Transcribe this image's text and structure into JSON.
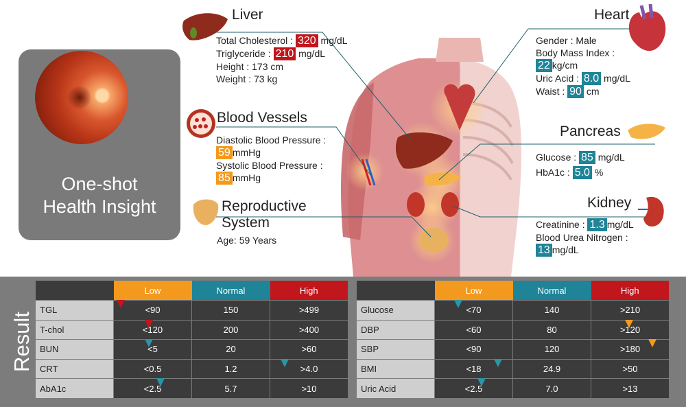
{
  "insight": {
    "title_line1": "One-shot",
    "title_line2": "Health Insight"
  },
  "liver": {
    "title": "Liver",
    "cholesterol_label": "Total Cholesterol :",
    "cholesterol_value": "320",
    "cholesterol_unit": "mg/dL",
    "triglyceride_label": "Triglyceride :",
    "triglyceride_value": "210",
    "triglyceride_unit": "mg/dL",
    "height": "Height : 173 cm",
    "weight": "Weight : 73 kg"
  },
  "blood_vessels": {
    "title": "Blood Vessels",
    "diastolic_label": "Diastolic Blood Pressure :",
    "diastolic_value": "59",
    "diastolic_unit": "mmHg",
    "systolic_label": "Systolic Blood Pressure :",
    "systolic_value": "85",
    "systolic_unit": "mmHg"
  },
  "reproductive": {
    "title_line1": "Reproductive",
    "title_line2": "System",
    "age": "Age: 59 Years"
  },
  "heart": {
    "title": "Heart",
    "gender": "Gender : Male",
    "bmi_label": "Body Mass Index :",
    "bmi_value": "22",
    "bmi_unit": "kg/cm",
    "uric_label": "Uric Acid :",
    "uric_value": "8.0",
    "uric_unit": "mg/dL",
    "waist_label": "Waist :",
    "waist_value": "90",
    "waist_unit": "cm"
  },
  "pancreas": {
    "title": "Pancreas",
    "glucose_label": "Glucose :",
    "glucose_value": "85",
    "glucose_unit": "mg/dL",
    "hba1c_label": "HbA1c :",
    "hba1c_value": "5.0",
    "hba1c_unit": "%"
  },
  "kidney": {
    "title": "Kidney",
    "creatinine_label": "Creatinine :",
    "creatinine_value": "1.3",
    "creatinine_unit": "mg/dL",
    "bun_label": "Blood Urea Nitrogen :",
    "bun_value": "13",
    "bun_unit": "mg/dL"
  },
  "result": {
    "label": "Result",
    "headers": [
      "Low",
      "Normal",
      "High"
    ],
    "left": [
      {
        "name": "TGL",
        "low": "<90",
        "normal": "150",
        "high": ">499",
        "marker_pos": 0.03,
        "marker_color": "red"
      },
      {
        "name": "T-chol",
        "low": "<120",
        "normal": "200",
        "high": ">400",
        "marker_pos": 0.15,
        "marker_color": "red"
      },
      {
        "name": "BUN",
        "low": "<5",
        "normal": "20",
        "high": ">60",
        "marker_pos": 0.15,
        "marker_color": "teal"
      },
      {
        "name": "CRT",
        "low": "<0.5",
        "normal": "1.2",
        "high": ">4.0",
        "marker_pos": 0.73,
        "marker_color": "teal"
      },
      {
        "name": "AbA1c",
        "low": "<2.5",
        "normal": "5.7",
        "high": ">10",
        "marker_pos": 0.2,
        "marker_color": "teal"
      }
    ],
    "right": [
      {
        "name": "Glucose",
        "low": "<70",
        "normal": "140",
        "high": ">210",
        "marker_pos": 0.1,
        "marker_color": "teal"
      },
      {
        "name": "DBP",
        "low": "<60",
        "normal": "80",
        "high": ">120",
        "marker_pos": 0.83,
        "marker_color": "orange"
      },
      {
        "name": "SBP",
        "low": "<90",
        "normal": "120",
        "high": ">180",
        "marker_pos": 0.93,
        "marker_color": "orange"
      },
      {
        "name": "BMI",
        "low": "<18",
        "normal": "24.9",
        "high": ">50",
        "marker_pos": 0.27,
        "marker_color": "teal"
      },
      {
        "name": "Uric Acid",
        "low": "<2.5",
        "normal": "7.0",
        "high": ">13",
        "marker_pos": 0.2,
        "marker_color": "teal"
      }
    ]
  },
  "colors": {
    "low": "#f39a1e",
    "normal": "#1f8497",
    "high": "#c0161c",
    "panel": "#7c7c7c"
  }
}
